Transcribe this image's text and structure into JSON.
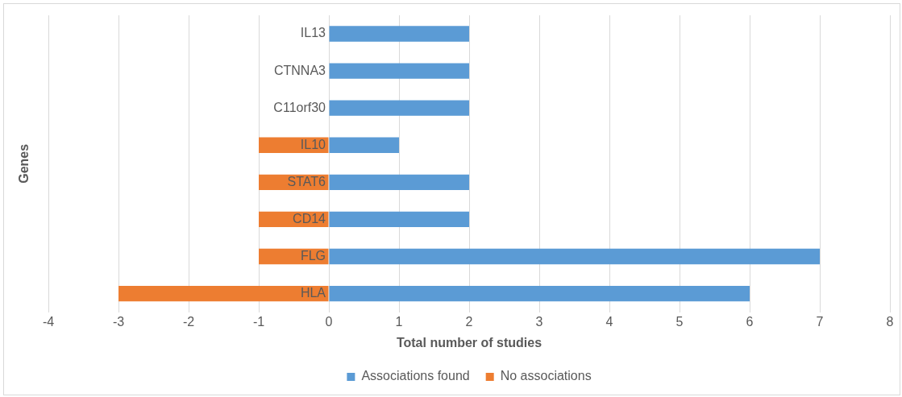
{
  "chart_data": {
    "type": "bar",
    "orientation": "horizontal",
    "stacked": true,
    "xlabel": "Total number of studies",
    "ylabel": "Genes",
    "categories": [
      "IL13",
      "CTNNA3",
      "C11orf30",
      "IL10",
      "STAT6",
      "CD14",
      "FLG",
      "HLA"
    ],
    "series": [
      {
        "name": "Associations found",
        "color": "#5b9bd5",
        "values": [
          2,
          2,
          2,
          1,
          2,
          2,
          7,
          6
        ]
      },
      {
        "name": "No associations",
        "color": "#ed7d31",
        "values": [
          null,
          null,
          null,
          -1,
          -1,
          -1,
          -1,
          -3
        ]
      }
    ],
    "xlim": [
      -4,
      8
    ],
    "xticks": [
      -4,
      -3,
      -2,
      -1,
      0,
      1,
      2,
      3,
      4,
      5,
      6,
      7,
      8
    ],
    "grid": "x",
    "legend": "bottom"
  }
}
